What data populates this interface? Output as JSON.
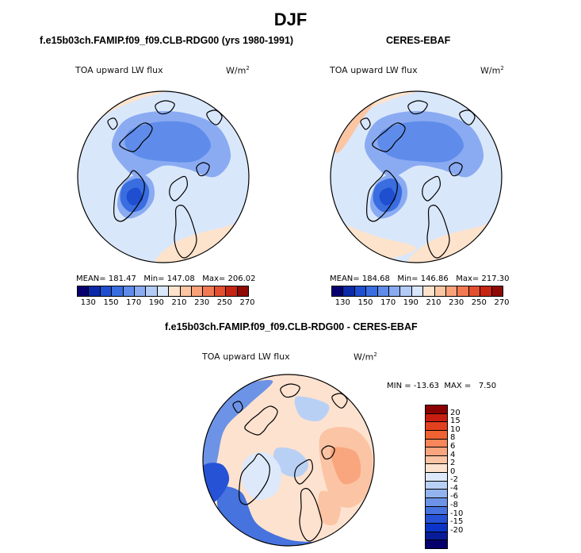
{
  "title": "DJF",
  "panels": [
    {
      "case_title": "f.e15b03ch.FAMIP.f09_f09.CLB-RDG00 (yrs 1980-1991)",
      "variable": "TOA upward LW flux",
      "units": "W/m",
      "units_sup": "2",
      "mean_label": "MEAN=",
      "mean": "181.47",
      "min_label": "Min=",
      "min": "147.08",
      "max_label": "Max=",
      "max": "206.02"
    },
    {
      "case_title": "CERES-EBAF",
      "variable": "TOA upward LW flux",
      "units": "W/m",
      "units_sup": "2",
      "mean_label": "MEAN=",
      "mean": "184.68",
      "min_label": "Min=",
      "min": "146.86",
      "max_label": "Max=",
      "max": "217.30"
    },
    {
      "case_title": "f.e15b03ch.FAMIP.f09_f09.CLB-RDG00 - CERES-EBAF",
      "variable": "TOA upward LW flux",
      "units": "W/m",
      "units_sup": "2",
      "min_label": "MIN =",
      "min": "-13.63",
      "max_label": "MAX =",
      "max": "7.50"
    }
  ],
  "colorbars": {
    "absolute": {
      "colors": [
        "#08006e",
        "#0a2aa8",
        "#1f4fd0",
        "#3a6ee0",
        "#5f8cea",
        "#8aabf2",
        "#b3ccf7",
        "#d9e7fb",
        "#fde3cc",
        "#fcc6a3",
        "#f9a27a",
        "#f27a52",
        "#e44f2f",
        "#c62514",
        "#8f0a05"
      ],
      "tick_labels": [
        "130",
        "150",
        "170",
        "190",
        "210",
        "230",
        "250",
        "270"
      ]
    },
    "difference": {
      "colors": [
        "#8b0000",
        "#c81e0f",
        "#e2401e",
        "#f06232",
        "#f7865a",
        "#f9a57e",
        "#fbc4a4",
        "#fde2cf",
        "#dde9fa",
        "#b9d0f5",
        "#93b3ee",
        "#6c93e6",
        "#4673de",
        "#2653d6",
        "#0a35c8",
        "#081c9a",
        "#05006b"
      ],
      "tick_labels": [
        "20",
        "15",
        "10",
        "8",
        "6",
        "4",
        "2",
        "0",
        "-2",
        "-4",
        "-6",
        "-8",
        "-10",
        "-15",
        "-20"
      ]
    }
  },
  "chart_data": [
    {
      "type": "heatmap",
      "projection": "north-polar-stereographic",
      "title": "f.e15b03ch.FAMIP.f09_f09.CLB-RDG00 (yrs 1980-1991)",
      "variable": "TOA upward LW flux",
      "units": "W/m^2",
      "mean": 181.47,
      "min": 147.08,
      "max": 206.02,
      "contour_levels": [
        130,
        140,
        150,
        160,
        170,
        180,
        190,
        200,
        210,
        220,
        230,
        240,
        250,
        260,
        270,
        280
      ]
    },
    {
      "type": "heatmap",
      "projection": "north-polar-stereographic",
      "title": "CERES-EBAF",
      "variable": "TOA upward LW flux",
      "units": "W/m^2",
      "mean": 184.68,
      "min": 146.86,
      "max": 217.3,
      "contour_levels": [
        130,
        140,
        150,
        160,
        170,
        180,
        190,
        200,
        210,
        220,
        230,
        240,
        250,
        260,
        270,
        280
      ]
    },
    {
      "type": "heatmap",
      "projection": "north-polar-stereographic",
      "title": "f.e15b03ch.FAMIP.f09_f09.CLB-RDG00 - CERES-EBAF",
      "variable": "TOA upward LW flux",
      "units": "W/m^2",
      "min": -13.63,
      "max": 7.5,
      "contour_levels": [
        -20,
        -15,
        -10,
        -8,
        -6,
        -4,
        -2,
        0,
        2,
        4,
        6,
        8,
        10,
        15,
        20
      ]
    }
  ]
}
